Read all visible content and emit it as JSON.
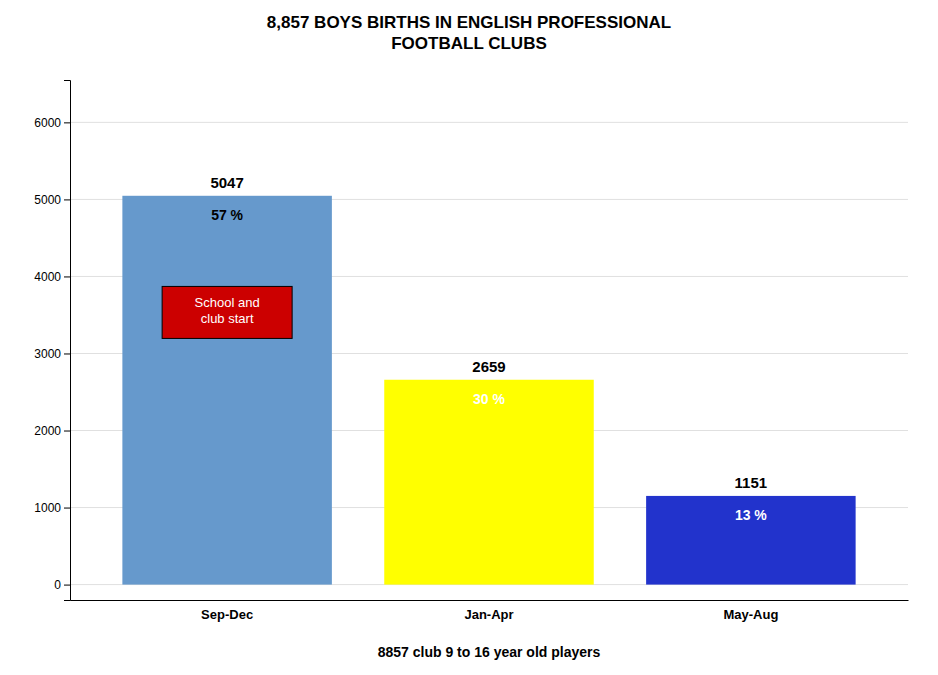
{
  "chart_data": {
    "type": "bar",
    "title": "8,857 BOYS BIRTHS IN ENGLISH PROFESSIONAL\nFOOTBALL CLUBS",
    "xlabel": "8857 club 9 to 16 year old players",
    "categories": [
      "Sep-Dec",
      "Jan-Apr",
      "May-Aug"
    ],
    "values": [
      5047,
      2659,
      1151
    ],
    "colors": [
      "#6699CC",
      "#FFFF00",
      "#2233CC"
    ],
    "data_labels": true,
    "percentage_labels": [
      "57 %",
      "30 %",
      "13 %"
    ],
    "annotation": {
      "text": "School and\nclub start",
      "color": "#CC0000"
    },
    "ylim": [
      -200,
      6550
    ],
    "yticks": [
      0,
      1000,
      2000,
      3000,
      4000,
      5000,
      6000
    ],
    "grid": true
  }
}
